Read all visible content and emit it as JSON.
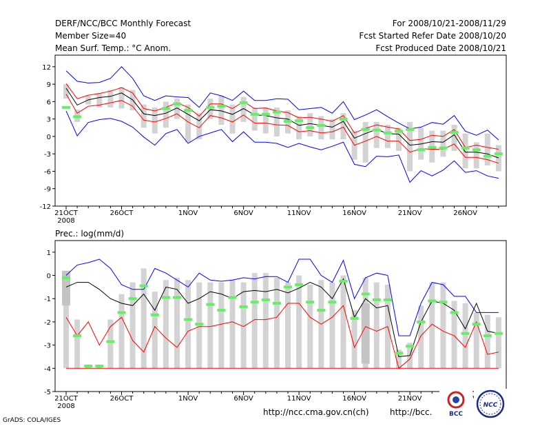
{
  "header": {
    "title": "DERF/NCC/BCC Monthly Forecast",
    "member_size": "Member Size=40",
    "variable": "Mean Surf. Temp.: °C Anom.",
    "period": "For 2008/10/21-2008/11/29",
    "refer_date": "Fcst Started Refer Date 2008/10/20",
    "produced_date": "Fcst Produced Date 2008/10/21"
  },
  "footer": {
    "grads_credit": "GrADS: COLA/IGES",
    "url_ncc": "http://ncc.cma.gov.cn(ch)",
    "url_bcc": "http://bcc.",
    "logo_bcc": "BCC",
    "logo_ncc": "NCC"
  },
  "colors": {
    "envelope": "#0000ff",
    "spread": "#ff0000",
    "ensemble_mean": "#000000",
    "observed": "#66ee66",
    "box": "#d3d3d3",
    "floor_line": "#ff0000"
  },
  "chart_data": [
    {
      "type": "line",
      "title": "Mean Surf. Temp.: °C Anom.",
      "xlabel": "",
      "ylabel": "",
      "x_tick_labels": [
        "21OCT",
        "26OCT",
        "1NOV",
        "6NOV",
        "11NOV",
        "16NOV",
        "21NOV",
        "26NOV"
      ],
      "x_tick_days": [
        1,
        6,
        12,
        17,
        22,
        27,
        32,
        37
      ],
      "x_year_label": "2008",
      "ylim": [
        -12,
        14
      ],
      "y_ticks": [
        -12,
        -9,
        -6,
        -3,
        0,
        3,
        6,
        9,
        12
      ],
      "days": [
        1,
        2,
        3,
        4,
        5,
        6,
        7,
        8,
        9,
        10,
        11,
        12,
        13,
        14,
        15,
        16,
        17,
        18,
        19,
        20,
        21,
        22,
        23,
        24,
        25,
        26,
        27,
        28,
        29,
        30,
        31,
        32,
        33,
        34,
        35,
        36,
        37,
        38,
        39,
        40
      ],
      "series": [
        {
          "name": "max",
          "values": [
            11.3,
            9.5,
            9.2,
            9.3,
            10.0,
            12.0,
            10.0,
            7.0,
            6.2,
            7.0,
            6.8,
            6.7,
            5.0,
            7.5,
            7.0,
            6.2,
            7.8,
            6.2,
            6.2,
            6.5,
            6.4,
            4.6,
            4.8,
            5.0,
            4.0,
            6.0,
            2.9,
            3.7,
            4.6,
            3.4,
            2.3,
            1.3,
            1.6,
            2.4,
            2.1,
            3.6,
            0.9,
            0.2,
            1.1,
            -0.6
          ]
        },
        {
          "name": "upper",
          "values": [
            9.1,
            6.5,
            7.1,
            7.4,
            7.8,
            8.4,
            7.5,
            4.8,
            4.4,
            5.0,
            5.8,
            5.0,
            3.5,
            5.6,
            5.6,
            4.8,
            6.0,
            4.8,
            4.9,
            4.4,
            4.1,
            3.2,
            3.3,
            3.0,
            2.6,
            3.6,
            0.6,
            1.4,
            2.0,
            1.6,
            1.3,
            -0.7,
            -0.5,
            0.2,
            0.0,
            1.2,
            -1.9,
            -1.5,
            -1.9,
            -2.2
          ]
        },
        {
          "name": "mean",
          "values": [
            8.3,
            5.4,
            6.3,
            6.7,
            6.9,
            7.5,
            6.3,
            3.9,
            3.6,
            4.0,
            4.9,
            3.8,
            2.7,
            4.6,
            4.4,
            3.8,
            4.8,
            3.7,
            3.6,
            3.2,
            3.0,
            1.9,
            2.2,
            1.9,
            1.6,
            2.6,
            -0.3,
            0.5,
            1.2,
            0.5,
            0.4,
            -1.5,
            -1.3,
            -0.9,
            -1.0,
            0.3,
            -2.7,
            -2.7,
            -3.0,
            -3.7
          ]
        },
        {
          "name": "lower",
          "values": [
            7.3,
            4.0,
            5.2,
            5.4,
            5.8,
            6.2,
            5.2,
            2.8,
            2.5,
            3.1,
            3.9,
            2.5,
            1.5,
            3.6,
            3.2,
            2.5,
            3.7,
            2.3,
            2.3,
            2.0,
            1.9,
            0.8,
            1.0,
            0.6,
            0.8,
            1.6,
            -1.5,
            -0.8,
            0.0,
            -0.8,
            -0.8,
            -2.7,
            -2.1,
            -2.2,
            -2.2,
            -1.3,
            -3.6,
            -3.6,
            -4.0,
            -4.6
          ]
        },
        {
          "name": "min",
          "values": [
            4.4,
            0.1,
            2.4,
            2.9,
            3.1,
            2.6,
            1.6,
            -0.1,
            -1.5,
            0.5,
            1.2,
            -1.2,
            0.0,
            0.6,
            1.2,
            -0.9,
            0.8,
            -1.0,
            -1.0,
            -1.2,
            -1.9,
            -1.2,
            -1.8,
            -2.3,
            -1.7,
            -1.0,
            -4.8,
            -5.2,
            -3.4,
            -3.5,
            -3.2,
            -7.9,
            -5.9,
            -6.8,
            -5.8,
            -4.2,
            -6.2,
            -5.9,
            -6.8,
            -7.2
          ]
        }
      ],
      "boxes": [
        [
          6.5,
          9.0
        ],
        [
          2.5,
          4.6
        ],
        [
          5.5,
          7.0
        ],
        [
          5.0,
          7.5
        ],
        [
          5.0,
          8.0
        ],
        [
          4.8,
          8.5
        ],
        [
          4.5,
          8.0
        ],
        [
          1.5,
          5.5
        ],
        [
          0.5,
          5.0
        ],
        [
          1.5,
          6.0
        ],
        [
          3.0,
          6.5
        ],
        [
          -1.0,
          5.5
        ],
        [
          -0.5,
          4.0
        ],
        [
          3.0,
          6.5
        ],
        [
          2.0,
          7.0
        ],
        [
          0.5,
          5.5
        ],
        [
          2.5,
          6.8
        ],
        [
          1.0,
          5.0
        ],
        [
          0.5,
          5.0
        ],
        [
          0.0,
          5.0
        ],
        [
          0.5,
          4.5
        ],
        [
          -0.5,
          3.5
        ],
        [
          0.0,
          4.0
        ],
        [
          -0.5,
          3.5
        ],
        [
          -0.5,
          3.0
        ],
        [
          -0.5,
          4.0
        ],
        [
          -4.0,
          1.0
        ],
        [
          -4.5,
          2.5
        ],
        [
          -2.0,
          2.5
        ],
        [
          -2.0,
          2.0
        ],
        [
          -2.5,
          1.5
        ],
        [
          -6.0,
          2.5
        ],
        [
          -4.0,
          1.5
        ],
        [
          -4.5,
          1.0
        ],
        [
          -3.5,
          1.0
        ],
        [
          -2.5,
          2.0
        ],
        [
          -5.5,
          0.5
        ],
        [
          -5.5,
          -1.0
        ],
        [
          -5.0,
          0.5
        ],
        [
          -6.0,
          -1.5
        ]
      ],
      "observed": [
        5.0,
        3.4,
        null,
        null,
        null,
        null,
        null,
        null,
        null,
        4.8,
        5.6,
        4.5,
        null,
        5.0,
        5.2,
        null,
        5.8,
        3.8,
        3.8,
        4.2,
        2.6,
        2.7,
        1.5,
        1.9,
        null,
        3.0,
        null,
        1.2,
        1.1,
        0.6,
        0.9,
        1.2,
        -2.3,
        -1.9,
        -2.0,
        0.7,
        -2.0,
        -2.3,
        -3.4,
        -3.0
      ]
    },
    {
      "type": "line",
      "title": "Prec.: log(mm/d)",
      "xlabel": "",
      "ylabel": "",
      "x_tick_labels": [
        "21OCT",
        "26OCT",
        "1NOV",
        "6NOV",
        "11NOV",
        "16NOV",
        "21NOV",
        "26NOV"
      ],
      "x_tick_days": [
        1,
        6,
        12,
        17,
        22,
        27,
        32,
        37
      ],
      "x_year_label": "2008",
      "ylim": [
        -5,
        1.5
      ],
      "y_ticks": [
        -5,
        -4,
        -3,
        -2,
        -1,
        0,
        1
      ],
      "floor": -4,
      "days": [
        1,
        2,
        3,
        4,
        5,
        6,
        7,
        8,
        9,
        10,
        11,
        12,
        13,
        14,
        15,
        16,
        17,
        18,
        19,
        20,
        21,
        22,
        23,
        24,
        25,
        26,
        27,
        28,
        29,
        30,
        31,
        32,
        33,
        34,
        35,
        36,
        37,
        38,
        39,
        40
      ],
      "series": [
        {
          "name": "max",
          "values": [
            0.0,
            0.45,
            0.55,
            0.7,
            0.3,
            -0.4,
            -0.6,
            -0.6,
            0.3,
            0.1,
            -0.2,
            -0.5,
            0.1,
            -0.2,
            -0.25,
            -0.2,
            -0.1,
            -0.15,
            -0.05,
            -0.05,
            -0.3,
            0.7,
            0.7,
            0.0,
            -0.3,
            0.65,
            -1.0,
            -0.1,
            0.1,
            0.0,
            -2.6,
            -2.6,
            -1.2,
            -0.3,
            -0.4,
            -0.9,
            -0.9,
            -1.6,
            -1.6,
            -1.6
          ]
        },
        {
          "name": "mean",
          "values": [
            -0.5,
            -0.3,
            -0.3,
            -0.6,
            -1.0,
            -1.2,
            -1.3,
            -0.8,
            -1.5,
            -0.5,
            -0.6,
            -1.2,
            -1.0,
            -0.7,
            -0.8,
            -1.0,
            -0.7,
            -0.65,
            -0.7,
            -0.6,
            -0.75,
            -0.55,
            -0.3,
            -0.5,
            -1.0,
            -0.15,
            -1.8,
            -1.0,
            -1.4,
            -1.3,
            -3.5,
            -3.45,
            -2.0,
            -1.1,
            -1.2,
            -1.5,
            -2.3,
            -1.2,
            -2.4,
            -2.5
          ]
        },
        {
          "name": "min",
          "values": [
            -1.8,
            -2.6,
            -2.0,
            -3.0,
            -2.2,
            -1.8,
            -2.8,
            -3.3,
            -2.2,
            -2.7,
            -3.1,
            -2.4,
            -2.2,
            -2.2,
            -2.1,
            -2.0,
            -2.2,
            -1.9,
            -1.9,
            -1.8,
            -1.2,
            -1.2,
            -1.8,
            -2.1,
            -1.8,
            -1.3,
            -3.1,
            -2.2,
            -2.4,
            -2.2,
            -4.2,
            -3.6,
            -2.6,
            -2.1,
            -2.4,
            -2.6,
            -3.1,
            -2.0,
            -3.4,
            -3.3
          ]
        }
      ],
      "boxes": [
        [
          -4,
          -0.1
        ],
        [
          -4,
          -1.9
        ],
        [
          -4,
          -3.9
        ],
        [
          -4,
          -3.9
        ],
        [
          -4,
          -1.9
        ],
        [
          -4,
          -0.8
        ],
        [
          -4,
          -0.3
        ],
        [
          -4,
          0.3
        ],
        [
          -4,
          -0.7
        ],
        [
          -4,
          -0.2
        ],
        [
          -4,
          -0.1
        ],
        [
          -4,
          -0.2
        ],
        [
          -4,
          -0.3
        ],
        [
          -4,
          -0.3
        ],
        [
          -4,
          -0.3
        ],
        [
          -4,
          -0.2
        ],
        [
          -4,
          -0.3
        ],
        [
          -4,
          0.1
        ],
        [
          -4,
          0.1
        ],
        [
          -4,
          -0.1
        ],
        [
          -4,
          -0.3
        ],
        [
          -4,
          0.0
        ],
        [
          -4,
          -0.4
        ],
        [
          -4,
          -0.2
        ],
        [
          -4,
          -0.3
        ],
        [
          -4,
          0.0
        ],
        [
          -4,
          -1.5
        ],
        [
          -4,
          -0.1
        ],
        [
          -4,
          -0.3
        ],
        [
          -4,
          -0.4
        ],
        [
          -4,
          -3.2
        ],
        [
          -4,
          -2.9
        ],
        [
          -4,
          -1.3
        ],
        [
          -4,
          -0.3
        ],
        [
          -4,
          -0.3
        ],
        [
          -4,
          -1.1
        ],
        [
          -4,
          -1.2
        ],
        [
          -4,
          -1.6
        ],
        [
          -4,
          -1.7
        ],
        [
          -4,
          -1.8
        ]
      ],
      "iqr": [
        [
          -1.3,
          0.2
        ],
        null,
        null,
        null,
        null,
        null,
        null,
        null,
        null,
        null,
        null,
        null,
        null,
        null,
        null,
        null,
        null,
        null,
        null,
        null,
        null,
        null,
        null,
        null,
        null,
        null,
        null,
        [
          -3.8,
          -1.2
        ],
        null,
        null,
        null,
        null,
        null,
        null,
        null,
        null,
        null,
        null,
        null,
        null
      ],
      "observed": [
        -0.1,
        -2.6,
        -3.9,
        -3.9,
        -2.85,
        -1.6,
        -1.0,
        -0.45,
        -1.7,
        -0.95,
        -0.95,
        -1.9,
        -2.1,
        -1.25,
        -1.5,
        -0.95,
        -1.35,
        -1.15,
        -1.05,
        -1.2,
        -0.5,
        -0.4,
        -1.15,
        -1.5,
        -1.15,
        -0.25,
        -1.85,
        -0.8,
        -1.05,
        -1.05,
        -3.35,
        -3.05,
        -2.0,
        -1.1,
        -1.15,
        -1.6,
        -2.5,
        -2.1,
        -2.6,
        -2.5
      ]
    }
  ]
}
